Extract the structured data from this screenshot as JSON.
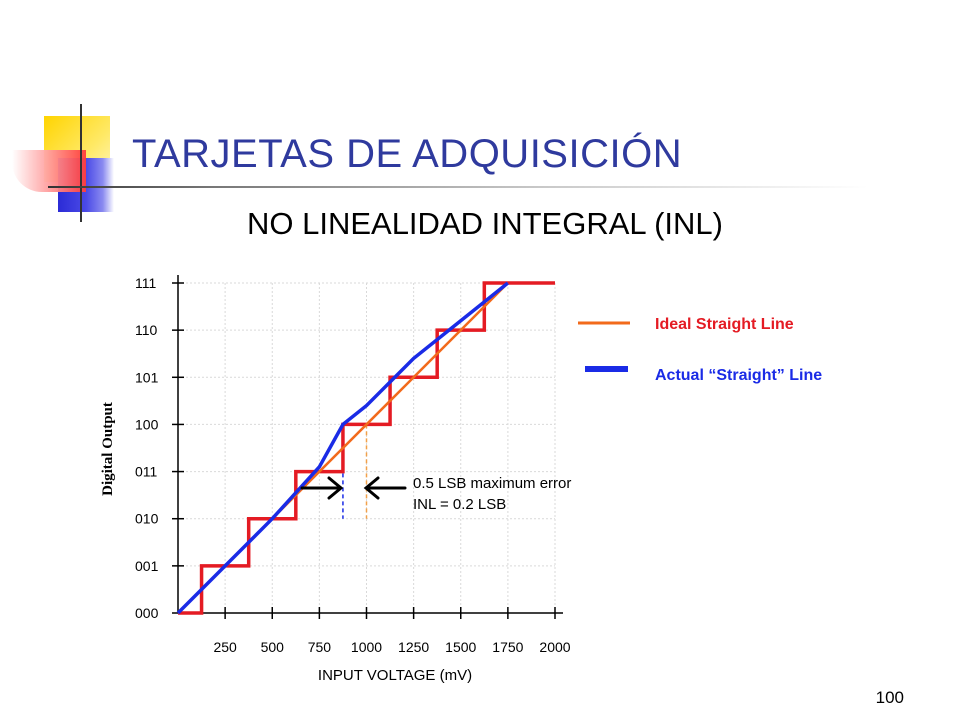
{
  "slide": {
    "title": "TARJETAS DE ADQUISICIÓN",
    "subtitle": "NO LINEALIDAD INTEGRAL (INL)",
    "page_number": "100"
  },
  "chart_data": {
    "type": "line",
    "xlabel": "INPUT VOLTAGE (mV)",
    "ylabel": "Digital Output",
    "x_ticks": [
      250,
      500,
      750,
      1000,
      1250,
      1500,
      1750,
      2000
    ],
    "y_categories": [
      "000",
      "001",
      "010",
      "011",
      "100",
      "101",
      "110",
      "111"
    ],
    "xlim": [
      0,
      2000
    ],
    "ylim": [
      0,
      7
    ],
    "grid": true,
    "legend_position": "right",
    "series": [
      {
        "name": "",
        "kind": "step",
        "color": "#e41b23",
        "x": [
          0,
          125,
          375,
          625,
          875,
          1125,
          1375,
          1625,
          2000
        ],
        "y": [
          0,
          1,
          2,
          3,
          4,
          5,
          6,
          7,
          7
        ]
      },
      {
        "name": "Ideal Straight Line",
        "kind": "line",
        "color": "#f26a1b",
        "x": [
          0,
          1750
        ],
        "y": [
          0,
          7
        ]
      },
      {
        "name": "Actual “Straight” Line",
        "kind": "line",
        "color": "#1a2be6",
        "x": [
          0,
          500,
          750,
          875,
          1000,
          1250,
          1500,
          1750
        ],
        "y": [
          0,
          2,
          3.1,
          4,
          4.4,
          5.4,
          6.2,
          7
        ]
      }
    ],
    "reference_lines": [
      {
        "x": 875,
        "color": "#1a2be6"
      },
      {
        "x": 1000,
        "color": "#f2a14a"
      }
    ],
    "annotations": [
      "0.5 LSB maximum error",
      "INL = 0.2 LSB"
    ]
  }
}
